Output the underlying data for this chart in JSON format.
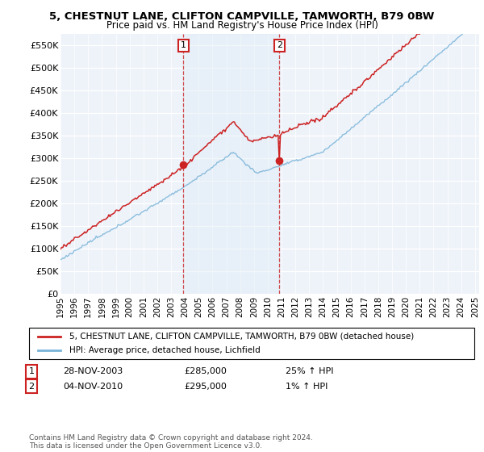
{
  "title": "5, CHESTNUT LANE, CLIFTON CAMPVILLE, TAMWORTH, B79 0BW",
  "subtitle": "Price paid vs. HM Land Registry's House Price Index (HPI)",
  "hpi_color": "#7ab4d8",
  "hpi_fill_color": "#daeaf5",
  "price_color": "#cc2222",
  "bg_color": "#ffffff",
  "plot_bg_color": "#eef3fa",
  "ylim": [
    0,
    575000
  ],
  "yticks": [
    0,
    50000,
    100000,
    150000,
    200000,
    250000,
    300000,
    350000,
    400000,
    450000,
    500000,
    550000
  ],
  "ytick_labels": [
    "£0",
    "£50K",
    "£100K",
    "£150K",
    "£200K",
    "£250K",
    "£300K",
    "£350K",
    "£400K",
    "£450K",
    "£500K",
    "£550K"
  ],
  "legend_label_price": "5, CHESTNUT LANE, CLIFTON CAMPVILLE, TAMWORTH, B79 0BW (detached house)",
  "legend_label_hpi": "HPI: Average price, detached house, Lichfield",
  "sale1_date": "28-NOV-2003",
  "sale1_price": 285000,
  "sale1_hpi_text": "25% ↑ HPI",
  "sale2_date": "04-NOV-2010",
  "sale2_price": 295000,
  "sale2_hpi_text": "1% ↑ HPI",
  "footnote": "Contains HM Land Registry data © Crown copyright and database right 2024.\nThis data is licensed under the Open Government Licence v3.0.",
  "sale1_year_f": 2003.9,
  "sale2_year_f": 2010.85
}
